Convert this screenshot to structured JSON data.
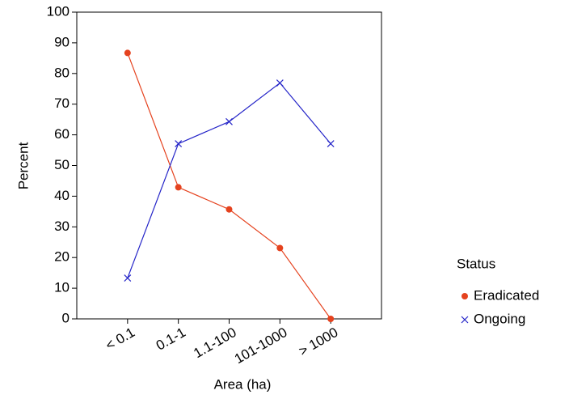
{
  "chart_data": {
    "type": "line",
    "x_label": "Area (ha)",
    "y_label": "Percent",
    "categories": [
      "< 0.1",
      "0.1-1",
      "1.1-100",
      "101-1000",
      "> 1000"
    ],
    "series": [
      {
        "name": "Eradicated",
        "color": "#e5421e",
        "marker": "circle",
        "values": [
          86.7,
          42.9,
          35.7,
          23.1,
          0
        ]
      },
      {
        "name": "Ongoing",
        "color": "#2424c8",
        "marker": "x",
        "values": [
          13.3,
          57.1,
          64.3,
          76.9,
          57.1
        ]
      }
    ],
    "legend_title": "Status",
    "ylim": [
      0,
      100
    ],
    "yticks": [
      0,
      10,
      20,
      30,
      40,
      50,
      60,
      70,
      80,
      90,
      100
    ]
  }
}
